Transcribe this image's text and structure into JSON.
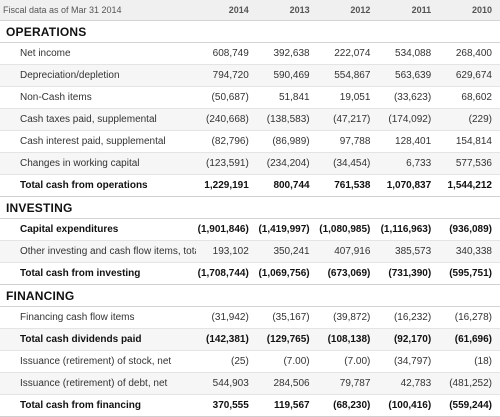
{
  "header": {
    "title": "Fiscal data as of Mar 31 2014",
    "years": [
      "2014",
      "2013",
      "2012",
      "2011",
      "2010"
    ]
  },
  "sections": [
    {
      "title": "OPERATIONS",
      "rows": [
        {
          "label": "Net income",
          "values": [
            "608,749",
            "392,638",
            "222,074",
            "534,088",
            "268,400"
          ]
        },
        {
          "label": "Depreciation/depletion",
          "values": [
            "794,720",
            "590,469",
            "554,867",
            "563,639",
            "629,674"
          ]
        },
        {
          "label": "Non-Cash items",
          "values": [
            "(50,687)",
            "51,841",
            "19,051",
            "(33,623)",
            "68,602"
          ]
        },
        {
          "label": "Cash taxes paid, supplemental",
          "values": [
            "(240,668)",
            "(138,583)",
            "(47,217)",
            "(174,092)",
            "(229)"
          ]
        },
        {
          "label": "Cash interest paid, supplemental",
          "values": [
            "(82,796)",
            "(86,989)",
            "97,788",
            "128,401",
            "154,814"
          ]
        },
        {
          "label": "Changes in working capital",
          "values": [
            "(123,591)",
            "(234,204)",
            "(34,454)",
            "6,733",
            "577,536"
          ]
        },
        {
          "label": "Total cash from operations",
          "values": [
            "1,229,191",
            "800,744",
            "761,538",
            "1,070,837",
            "1,544,212"
          ]
        }
      ]
    },
    {
      "title": "INVESTING",
      "rows": [
        {
          "label": "Capital expenditures",
          "values": [
            "(1,901,846)",
            "(1,419,997)",
            "(1,080,985)",
            "(1,116,963)",
            "(936,089)"
          ]
        },
        {
          "label": "Other investing and cash flow items, total",
          "values": [
            "193,102",
            "350,241",
            "407,916",
            "385,573",
            "340,338"
          ]
        },
        {
          "label": "Total cash from investing",
          "values": [
            "(1,708,744)",
            "(1,069,756)",
            "(673,069)",
            "(731,390)",
            "(595,751)"
          ]
        }
      ]
    },
    {
      "title": "FINANCING",
      "rows": [
        {
          "label": "Financing cash flow items",
          "values": [
            "(31,942)",
            "(35,167)",
            "(39,872)",
            "(16,232)",
            "(16,278)"
          ]
        },
        {
          "label": "Total cash dividends paid",
          "values": [
            "(142,381)",
            "(129,765)",
            "(108,138)",
            "(92,170)",
            "(61,696)"
          ]
        },
        {
          "label": "Issuance (retirement) of stock, net",
          "values": [
            "(25)",
            "(7.00)",
            "(7.00)",
            "(34,797)",
            "(18)"
          ]
        },
        {
          "label": "Issuance (retirement) of debt, net",
          "values": [
            "544,903",
            "284,506",
            "79,787",
            "42,783",
            "(481,252)"
          ]
        },
        {
          "label": "Total cash from financing",
          "values": [
            "370,555",
            "119,567",
            "(68,230)",
            "(100,416)",
            "(559,244)"
          ]
        }
      ]
    }
  ]
}
